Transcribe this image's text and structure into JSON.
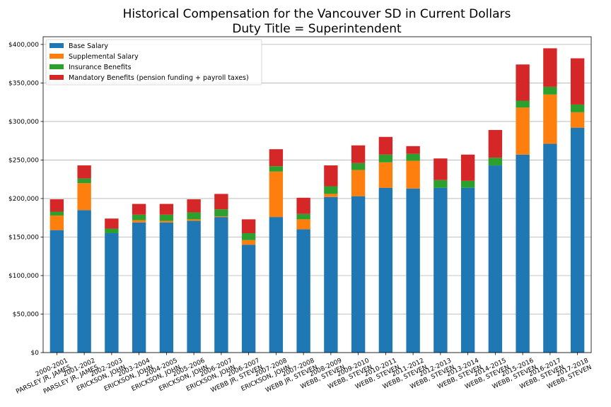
{
  "chart_data": {
    "type": "bar",
    "stacked": true,
    "title": "Historical Compensation for the Vancouver SD in Current Dollars",
    "subtitle": "Duty Title = Superintendent",
    "xlabel": "",
    "ylabel": "",
    "ylim": [
      0,
      410000
    ],
    "yticks": [
      0,
      50000,
      100000,
      150000,
      200000,
      250000,
      300000,
      350000,
      400000
    ],
    "ytick_labels": [
      "$0",
      "$50,000",
      "$100,000",
      "$150,000",
      "$200,000",
      "$250,000",
      "$300,000",
      "$350,000",
      "$400,000"
    ],
    "grid": "horizontal",
    "legend_position": "top-left",
    "categories": [
      [
        "2000-2001",
        "PARSLEY JR, JAMES"
      ],
      [
        "2001-2002",
        "PARSLEY JR, JAMES"
      ],
      [
        "2002-2003",
        "ERICKSON, JOHN"
      ],
      [
        "2003-2004",
        "ERICKSON, JOHN"
      ],
      [
        "2004-2005",
        "ERICKSON, JOHN"
      ],
      [
        "2005-2006",
        "ERICKSON, JOHN"
      ],
      [
        "2006-2007",
        "ERICKSON, JOHN"
      ],
      [
        "2006-2007",
        "WEBB JR, STEVEN"
      ],
      [
        "2007-2008",
        "ERICKSON, JOHN"
      ],
      [
        "2007-2008",
        "WEBB JR, STEVEN"
      ],
      [
        "2008-2009",
        "WEBB, STEVEN"
      ],
      [
        "2009-2010",
        "WEBB, STEVEN"
      ],
      [
        "2010-2011",
        "WEBB, STEVEN"
      ],
      [
        "2011-2012",
        "WEBB, STEVEN"
      ],
      [
        "2012-2013",
        "WEBB, STEVEN"
      ],
      [
        "2013-2014",
        "WEBB, STEVEN"
      ],
      [
        "2014-2015",
        "WEBB, STEVEN"
      ],
      [
        "2015-2016",
        "WEBB, STEVEN"
      ],
      [
        "2016-2017",
        "WEBB, STEVEN"
      ],
      [
        "2017-2018",
        "WEBB, STEVEN"
      ]
    ],
    "series": [
      {
        "name": "Base Salary",
        "color": "#1f77b4",
        "values": [
          159000,
          185000,
          155000,
          169000,
          169000,
          171000,
          176000,
          140000,
          176000,
          160000,
          202000,
          203000,
          214000,
          213000,
          214000,
          214000,
          243000,
          257000,
          271000,
          292000
        ]
      },
      {
        "name": "Supplemental Salary",
        "color": "#ff7f0e",
        "values": [
          19000,
          35000,
          0,
          3000,
          2000,
          2000,
          1000,
          6000,
          59000,
          13000,
          4000,
          34000,
          33000,
          36000,
          0,
          0,
          0,
          61000,
          64000,
          20000
        ]
      },
      {
        "name": "Insurance Benefits",
        "color": "#2ca02c",
        "values": [
          5000,
          6000,
          6000,
          7000,
          8000,
          9000,
          9000,
          9000,
          7000,
          7000,
          10000,
          9000,
          10000,
          9000,
          10000,
          9000,
          10000,
          9000,
          10000,
          10000
        ]
      },
      {
        "name": "Mandatory Benefits (pension funding + payroll taxes)",
        "color": "#d62728",
        "values": [
          16000,
          17000,
          13000,
          14000,
          14000,
          17000,
          20000,
          18000,
          22000,
          21000,
          27000,
          23000,
          23000,
          10000,
          28000,
          34000,
          36000,
          47000,
          50000,
          60000
        ]
      }
    ]
  }
}
